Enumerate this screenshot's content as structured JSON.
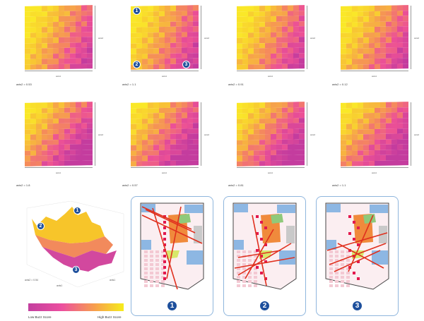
{
  "heatmaps": [
    {
      "caption": "axis2 = 0.53",
      "badges": []
    },
    {
      "caption": "axis2 = 1.1",
      "badges": [
        "1",
        "2",
        "3"
      ]
    },
    {
      "caption": "axis2 = 0.91"
    },
    {
      "caption": "axis2 = 0.12"
    },
    {
      "caption": "axis2 = 1.8"
    },
    {
      "caption": "axis2 = 0.57"
    },
    {
      "caption": "axis2 = 0.81"
    },
    {
      "caption": "axis2 = 1.1"
    }
  ],
  "axis_x_label": "axis1",
  "axis_y_label": "axis2",
  "surface": {
    "badges": [
      "1",
      "2",
      "3"
    ],
    "axis_left": "axis2 = 0.54",
    "axis_front": "axis1",
    "axis_right": "axis1"
  },
  "colorbar": {
    "low_label": "Low Buzz Score",
    "high_label": "High Buzz Score",
    "low_color": "#c33f9f",
    "high_color": "#f6ec1c"
  },
  "panels": [
    {
      "number": "1"
    },
    {
      "number": "2"
    },
    {
      "number": "3"
    }
  ]
}
